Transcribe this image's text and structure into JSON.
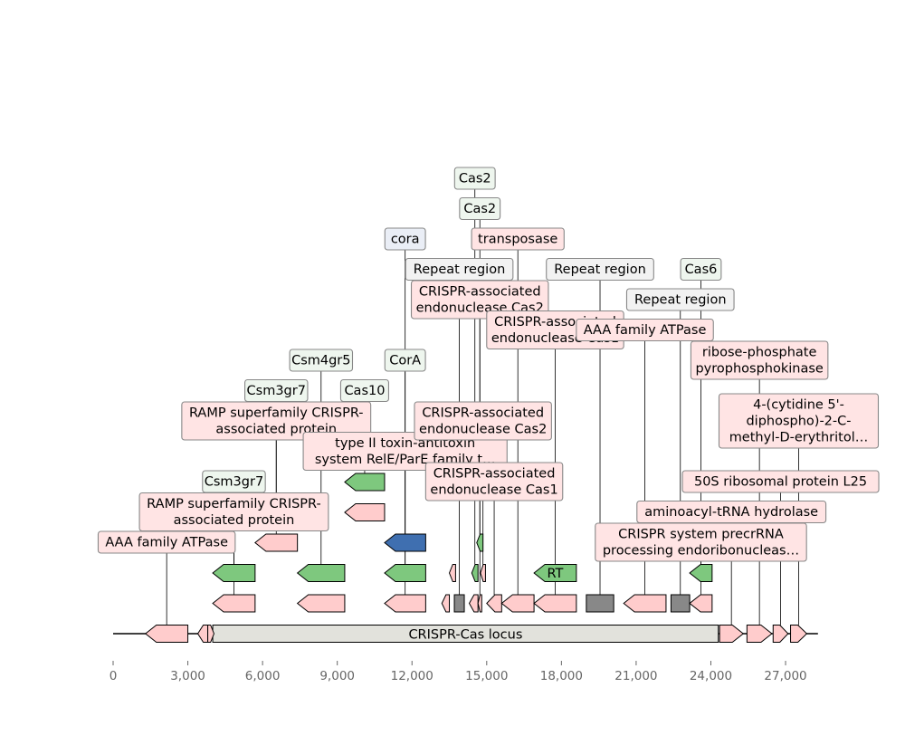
{
  "axis": {
    "min": 0,
    "max": 28000,
    "ticks": [
      {
        "value": 0,
        "label": "0"
      },
      {
        "value": 3000,
        "label": "3,000"
      },
      {
        "value": 6000,
        "label": "6,000"
      },
      {
        "value": 9000,
        "label": "9,000"
      },
      {
        "value": 12000,
        "label": "12,000"
      },
      {
        "value": 15000,
        "label": "15,000"
      },
      {
        "value": 18000,
        "label": "18,000"
      },
      {
        "value": 21000,
        "label": "21,000"
      },
      {
        "value": 24000,
        "label": "24,000"
      },
      {
        "value": 27000,
        "label": "27,000"
      }
    ]
  },
  "sequence": {
    "start": 0,
    "end": 28300
  },
  "colors": {
    "pink": "#ffcccc",
    "green": "#7ec87e",
    "blue": "#3f6fb0",
    "gray": "#888888",
    "locus": "#e2e2dc",
    "box_pink": "#ffe4e4",
    "box_green": "#eef6ee",
    "box_blue": "#eaeef6",
    "box_gray": "#f2f2f2"
  },
  "locus": {
    "start": 4000,
    "end": 24300,
    "label": "CRISPR-Cas locus"
  },
  "features": [
    {
      "id": "f1",
      "start": 1300,
      "end": 3000,
      "strand": -1,
      "row": 0,
      "color": "pink",
      "label": "AAA family ATPase",
      "label_row": 0
    },
    {
      "id": "f2",
      "start": 3400,
      "end": 3800,
      "strand": -1,
      "row": 0,
      "color": "pink"
    },
    {
      "id": "f3",
      "start": 3800,
      "end": 4050,
      "strand": 1,
      "row": 0,
      "color": "pink"
    },
    {
      "id": "f4",
      "start": 4000,
      "end": 5700,
      "strand": -1,
      "row": 1,
      "color": "pink",
      "label": "RAMP superfamily CRISPR-\nassociated protein",
      "label_row": 1
    },
    {
      "id": "f5",
      "start": 4000,
      "end": 5700,
      "strand": -1,
      "row": 2,
      "color": "green",
      "label": "Csm3gr7",
      "label_row": 2
    },
    {
      "id": "f6",
      "start": 5700,
      "end": 7400,
      "strand": -1,
      "row": 3,
      "color": "pink",
      "label": "RAMP superfamily CRISPR-\nassociated protein",
      "label_row": 4
    },
    {
      "id": "f7",
      "start": 5700,
      "end": 7400,
      "strand": -1,
      "row": 4,
      "color": "green",
      "label": "Csm3gr7",
      "label_row": 5
    },
    {
      "id": "f8",
      "start": 7400,
      "end": 9300,
      "strand": -1,
      "row": 1,
      "color": "pink"
    },
    {
      "id": "f9",
      "start": 7400,
      "end": 9300,
      "strand": -1,
      "row": 2,
      "color": "green",
      "label": "Csm4gr5",
      "label_row": 6
    },
    {
      "id": "f10",
      "start": 9300,
      "end": 10900,
      "strand": -1,
      "row": 4,
      "color": "pink"
    },
    {
      "id": "f11",
      "start": 9300,
      "end": 10900,
      "strand": -1,
      "row": 5,
      "color": "green",
      "label": "Cas10",
      "label_row": 5
    },
    {
      "id": "f12",
      "start": 10900,
      "end": 12550,
      "strand": -1,
      "row": 1,
      "color": "pink",
      "label": "type II toxin-antitoxin\nsystem RelE/ParE family t…",
      "label_row": 3
    },
    {
      "id": "f13",
      "start": 10900,
      "end": 12550,
      "strand": -1,
      "row": 2,
      "color": "green",
      "label": "CorA",
      "label_row": 6
    },
    {
      "id": "f14",
      "start": 10900,
      "end": 12550,
      "strand": -1,
      "row": 3,
      "color": "blue",
      "label": "cora",
      "label_row": 10
    },
    {
      "id": "f15",
      "start": 13200,
      "end": 13500,
      "strand": -1,
      "row": 1,
      "color": "pink"
    },
    {
      "id": "f16",
      "start": 13500,
      "end": 13750,
      "strand": -1,
      "row": 2,
      "color": "pink"
    },
    {
      "id": "f17",
      "start": 13700,
      "end": 14100,
      "strand": 0,
      "row": 1,
      "color": "gray",
      "label": "Repeat region",
      "label_row": 9
    },
    {
      "id": "f18",
      "start": 14300,
      "end": 14650,
      "strand": -1,
      "row": 1,
      "color": "pink"
    },
    {
      "id": "f19",
      "start": 14400,
      "end": 14650,
      "strand": -1,
      "row": 2,
      "color": "green",
      "label": "Cas2",
      "label_row": 12
    },
    {
      "id": "f20",
      "start": 14650,
      "end": 14800,
      "strand": -1,
      "row": 1,
      "color": "pink",
      "label": "CRISPR-associated\nendonuclease Cas2",
      "label_row": 8
    },
    {
      "id": "f21",
      "start": 14600,
      "end": 14850,
      "strand": -1,
      "row": 3,
      "color": "green",
      "label": "Cas2",
      "label_row": 11
    },
    {
      "id": "f22",
      "start": 14750,
      "end": 14950,
      "strand": -1,
      "row": 2,
      "color": "pink",
      "label": "CRISPR-associated\nendonuclease Cas2",
      "label_row": 4
    },
    {
      "id": "f23",
      "start": 15000,
      "end": 15600,
      "strand": -1,
      "row": 1,
      "color": "pink",
      "label": "CRISPR-associated\nendonuclease Cas1",
      "label_row": 2
    },
    {
      "id": "f24",
      "start": 15600,
      "end": 16900,
      "strand": -1,
      "row": 1,
      "color": "pink",
      "label": "transposase",
      "label_row": 10
    },
    {
      "id": "f25",
      "start": 16900,
      "end": 18600,
      "strand": -1,
      "row": 1,
      "color": "pink",
      "label": "CRISPR-associated\nendonuclease Cas1",
      "label_row": 7
    },
    {
      "id": "f26",
      "start": 16900,
      "end": 18600,
      "strand": -1,
      "row": 2,
      "color": "green",
      "text": "RT"
    },
    {
      "id": "f27",
      "start": 19000,
      "end": 20100,
      "strand": 0,
      "row": 1,
      "color": "gray",
      "label": "Repeat region",
      "label_row": 9
    },
    {
      "id": "f28",
      "start": 20500,
      "end": 22200,
      "strand": -1,
      "row": 1,
      "color": "pink",
      "label": "AAA family ATPase",
      "label_row": 7
    },
    {
      "id": "f29",
      "start": 22400,
      "end": 23150,
      "strand": 0,
      "row": 1,
      "color": "gray",
      "label": "Repeat region",
      "label_row": 8
    },
    {
      "id": "f30",
      "start": 23150,
      "end": 24050,
      "strand": -1,
      "row": 1,
      "color": "pink",
      "label": "CRISPR system precrRNA\nprocessing endoribonucleas…",
      "label_row": 0
    },
    {
      "id": "f31",
      "start": 23150,
      "end": 24050,
      "strand": -1,
      "row": 2,
      "color": "green",
      "label": "Cas6",
      "label_row": 9
    },
    {
      "id": "f32",
      "start": 24350,
      "end": 25300,
      "strand": 1,
      "row": 0,
      "color": "pink",
      "label": "aminoacyl-tRNA hydrolase",
      "label_row": 1
    },
    {
      "id": "f33",
      "start": 25450,
      "end": 26450,
      "strand": 1,
      "row": 0,
      "color": "pink",
      "label": "ribose-phosphate\npyrophosphokinase",
      "label_row": 6
    },
    {
      "id": "f34",
      "start": 26500,
      "end": 27100,
      "strand": 1,
      "row": 0,
      "color": "pink",
      "label": "50S ribosomal protein L25",
      "label_row": 2
    },
    {
      "id": "f35",
      "start": 27200,
      "end": 27850,
      "strand": 1,
      "row": 0,
      "color": "pink",
      "label": "4-(cytidine 5'-\ndiphospho)-2-C-\nmethyl-D-erythritol…",
      "label_row": 4
    }
  ]
}
